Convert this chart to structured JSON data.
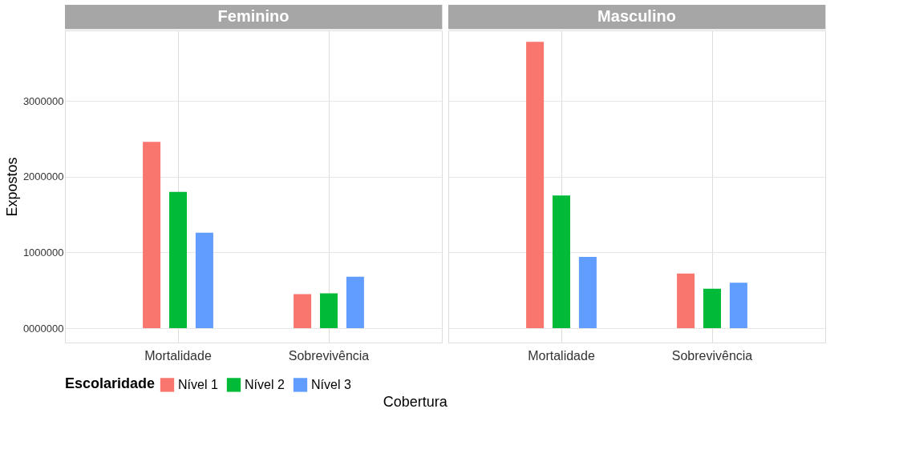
{
  "chart_data": [
    {
      "type": "bar",
      "title": "Feminino",
      "xlabel": "Cobertura",
      "ylabel": "Expostos",
      "legend_title": "Escolaridade",
      "legend": "bottom",
      "grid": true,
      "categories": [
        "Mortalidade",
        "Sobrevivência"
      ],
      "series": [
        {
          "name": "Nível 1",
          "color": "#f8766d",
          "values": [
            2460000,
            450000
          ]
        },
        {
          "name": "Nível 2",
          "color": "#00ba38",
          "values": [
            1800000,
            460000
          ]
        },
        {
          "name": "Nível 3",
          "color": "#619cff",
          "values": [
            1260000,
            680000
          ]
        }
      ],
      "ylim": [
        -190000,
        3930000
      ],
      "yticks": [
        {
          "value": 0,
          "label": "0000000"
        },
        1000000,
        2000000,
        3000000
      ]
    },
    {
      "type": "bar",
      "title": "Masculino",
      "grid": true,
      "tick_labels": "x",
      "categories": [
        "Mortalidade",
        "Sobrevivência"
      ],
      "series": [
        {
          "color": "#f8766d",
          "values": [
            3780000,
            720000
          ]
        },
        {
          "color": "#00ba38",
          "values": [
            1750000,
            520000
          ]
        },
        {
          "color": "#619cff",
          "values": [
            940000,
            600000
          ]
        }
      ],
      "ylim": [
        -190000,
        3930000
      ],
      "yticks": [
        0,
        1000000,
        2000000,
        3000000
      ]
    }
  ]
}
